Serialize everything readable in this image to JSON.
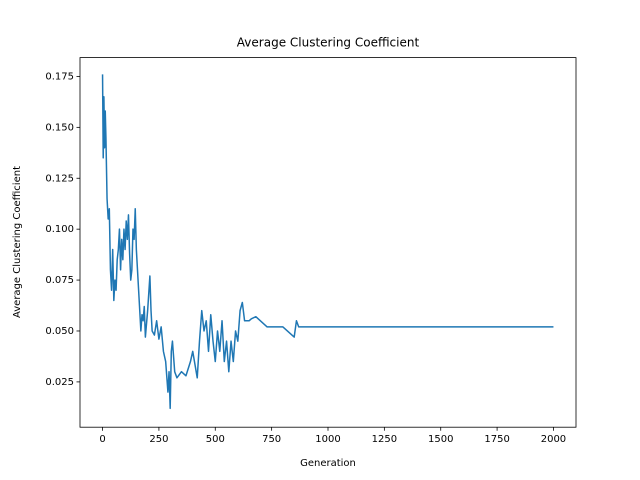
{
  "chart_data": {
    "type": "line",
    "title": "Average Clustering Coefficient",
    "x_label": "Generation",
    "y_label": "Average Clustering Coefficient",
    "xlim": [
      -100,
      2100
    ],
    "ylim": [
      0.00275,
      0.18425
    ],
    "xticks": [
      0,
      250,
      500,
      750,
      1000,
      1250,
      1500,
      1750,
      2000
    ],
    "yticks": [
      0.025,
      {
        "value": 0.05,
        "label": "0.050"
      },
      0.075,
      {
        "value": 0.1,
        "label": "0.100"
      },
      0.125,
      {
        "value": 0.15,
        "label": "0.150"
      },
      0.175
    ],
    "series": [
      {
        "color": "#1f77b4",
        "x": [
          0,
          3,
          6,
          9,
          12,
          15,
          20,
          25,
          30,
          35,
          40,
          45,
          50,
          55,
          60,
          65,
          70,
          75,
          80,
          85,
          90,
          95,
          100,
          105,
          110,
          115,
          120,
          125,
          130,
          135,
          140,
          145,
          150,
          155,
          160,
          165,
          170,
          175,
          180,
          185,
          190,
          200,
          210,
          215,
          220,
          230,
          240,
          250,
          260,
          270,
          280,
          290,
          295,
          300,
          305,
          310,
          320,
          330,
          350,
          370,
          390,
          400,
          420,
          430,
          440,
          450,
          460,
          470,
          480,
          490,
          500,
          510,
          520,
          530,
          540,
          550,
          560,
          570,
          580,
          590,
          600,
          610,
          620,
          630,
          650,
          660,
          680,
          730,
          800,
          850,
          860,
          870,
          900,
          2000
        ],
        "values": [
          0.176,
          0.135,
          0.165,
          0.14,
          0.158,
          0.145,
          0.115,
          0.105,
          0.11,
          0.08,
          0.07,
          0.09,
          0.065,
          0.075,
          0.07,
          0.085,
          0.09,
          0.1,
          0.08,
          0.095,
          0.085,
          0.1,
          0.09,
          0.104,
          0.095,
          0.107,
          0.088,
          0.075,
          0.08,
          0.1,
          0.095,
          0.11,
          0.09,
          0.08,
          0.07,
          0.06,
          0.05,
          0.058,
          0.055,
          0.062,
          0.047,
          0.06,
          0.077,
          0.06,
          0.05,
          0.048,
          0.055,
          0.046,
          0.052,
          0.04,
          0.035,
          0.02,
          0.03,
          0.012,
          0.04,
          0.045,
          0.03,
          0.027,
          0.03,
          0.028,
          0.035,
          0.04,
          0.027,
          0.045,
          0.06,
          0.05,
          0.055,
          0.04,
          0.058,
          0.045,
          0.035,
          0.05,
          0.04,
          0.055,
          0.035,
          0.045,
          0.03,
          0.045,
          0.035,
          0.05,
          0.045,
          0.06,
          0.064,
          0.055,
          0.055,
          0.056,
          0.057,
          0.052,
          0.052,
          0.047,
          0.055,
          0.052,
          0.052,
          0.052
        ]
      }
    ]
  }
}
